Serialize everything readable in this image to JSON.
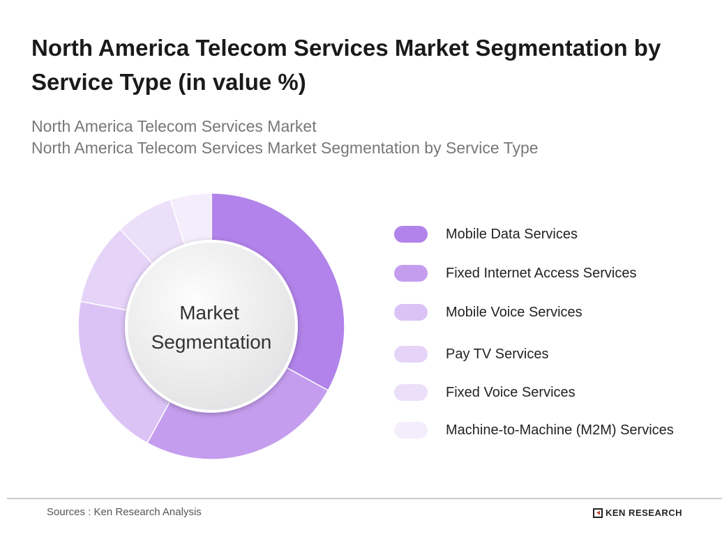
{
  "header": {
    "title": "North America Telecom Services Market Segmentation by Service Type (in value %)",
    "subtitle_1": "North America Telecom Services Market",
    "subtitle_2": "North America Telecom Services Market Segmentation by Service Type"
  },
  "chart_data": {
    "type": "pie",
    "variant": "donut",
    "center_label": "Market Segmentation",
    "legend_placement": "right",
    "categories": [
      "Mobile Data Services",
      "Fixed Internet Access Services",
      "Mobile Voice Services",
      "Pay TV Services",
      "Fixed Voice Services",
      "Machine-to-Machine (M2M) Services"
    ],
    "values": [
      33,
      25,
      20,
      10,
      7,
      5
    ],
    "colors": [
      "#b283ea",
      "#c59def",
      "#dbc3f6",
      "#e5d3f8",
      "#ecdff9",
      "#f4edfc"
    ]
  },
  "footer": {
    "source": "Sources : Ken Research Analysis",
    "logo": "KEN RESEARCH"
  }
}
